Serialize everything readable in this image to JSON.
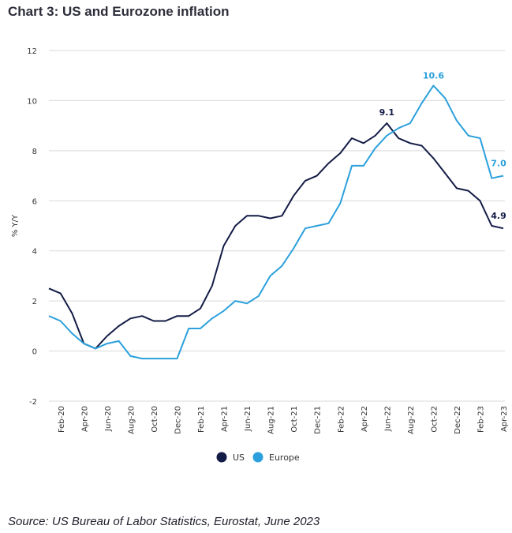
{
  "title": "Chart 3: US and Eurozone inflation",
  "source": "Source: US Bureau of Labor Statistics, Eurostat, June 2023",
  "colors": {
    "us": "#131c46",
    "europe": "#2ba0dc",
    "grid": "#d9d9d9"
  },
  "chart_data": {
    "type": "line",
    "title": "Chart 3: US and Eurozone inflation",
    "xlabel": "",
    "ylabel": "% Y/Y",
    "ylim": [
      -2,
      12
    ],
    "yticks": [
      -2,
      0,
      2,
      4,
      6,
      8,
      10,
      12
    ],
    "grid": true,
    "legend_position": "bottom-center",
    "categories": [
      "Jan-20",
      "Feb-20",
      "Mar-20",
      "Apr-20",
      "May-20",
      "Jun-20",
      "Jul-20",
      "Aug-20",
      "Sep-20",
      "Oct-20",
      "Nov-20",
      "Dec-20",
      "Jan-21",
      "Feb-21",
      "Mar-21",
      "Apr-21",
      "May-21",
      "Jun-21",
      "Jul-21",
      "Aug-21",
      "Sep-21",
      "Oct-21",
      "Nov-21",
      "Dec-21",
      "Jan-22",
      "Feb-22",
      "Mar-22",
      "Apr-22",
      "May-22",
      "Jun-22",
      "Jul-22",
      "Aug-22",
      "Sep-22",
      "Oct-22",
      "Nov-22",
      "Dec-22",
      "Jan-23",
      "Feb-23",
      "Mar-23",
      "Apr-23"
    ],
    "tick_labels": [
      "Feb-20",
      "Apr-20",
      "Jun-20",
      "Aug-20",
      "Oct-20",
      "Dec-20",
      "Feb-21",
      "Apr-21",
      "Jun-21",
      "Aug-21",
      "Oct-21",
      "Dec-21",
      "Feb-22",
      "Apr-22",
      "Jun-22",
      "Aug-22",
      "Oct-22",
      "Dec-22",
      "Feb-23",
      "Apr-23"
    ],
    "series": [
      {
        "name": "US",
        "values": [
          2.5,
          2.3,
          1.5,
          0.3,
          0.1,
          0.6,
          1.0,
          1.3,
          1.4,
          1.2,
          1.2,
          1.4,
          1.4,
          1.7,
          2.6,
          4.2,
          5.0,
          5.4,
          5.4,
          5.3,
          5.4,
          6.2,
          6.8,
          7.0,
          7.5,
          7.9,
          8.5,
          8.3,
          8.6,
          9.1,
          8.5,
          8.3,
          8.2,
          7.7,
          7.1,
          6.5,
          6.4,
          6.0,
          5.0,
          4.9
        ]
      },
      {
        "name": "Europe",
        "values": [
          1.4,
          1.2,
          0.7,
          0.3,
          0.1,
          0.3,
          0.4,
          -0.2,
          -0.3,
          -0.3,
          -0.3,
          -0.3,
          0.9,
          0.9,
          1.3,
          1.6,
          2.0,
          1.9,
          2.2,
          3.0,
          3.4,
          4.1,
          4.9,
          5.0,
          5.1,
          5.9,
          7.4,
          7.4,
          8.1,
          8.6,
          8.9,
          9.1,
          9.9,
          10.6,
          10.1,
          9.2,
          8.6,
          8.5,
          6.9,
          7.0
        ]
      }
    ],
    "annotations": [
      {
        "series": "US",
        "index": 29,
        "text": "9.1"
      },
      {
        "series": "Europe",
        "index": 33,
        "text": "10.6"
      },
      {
        "series": "Europe",
        "index": 39,
        "text": "7.0"
      },
      {
        "series": "US",
        "index": 39,
        "text": "4.9"
      }
    ]
  }
}
